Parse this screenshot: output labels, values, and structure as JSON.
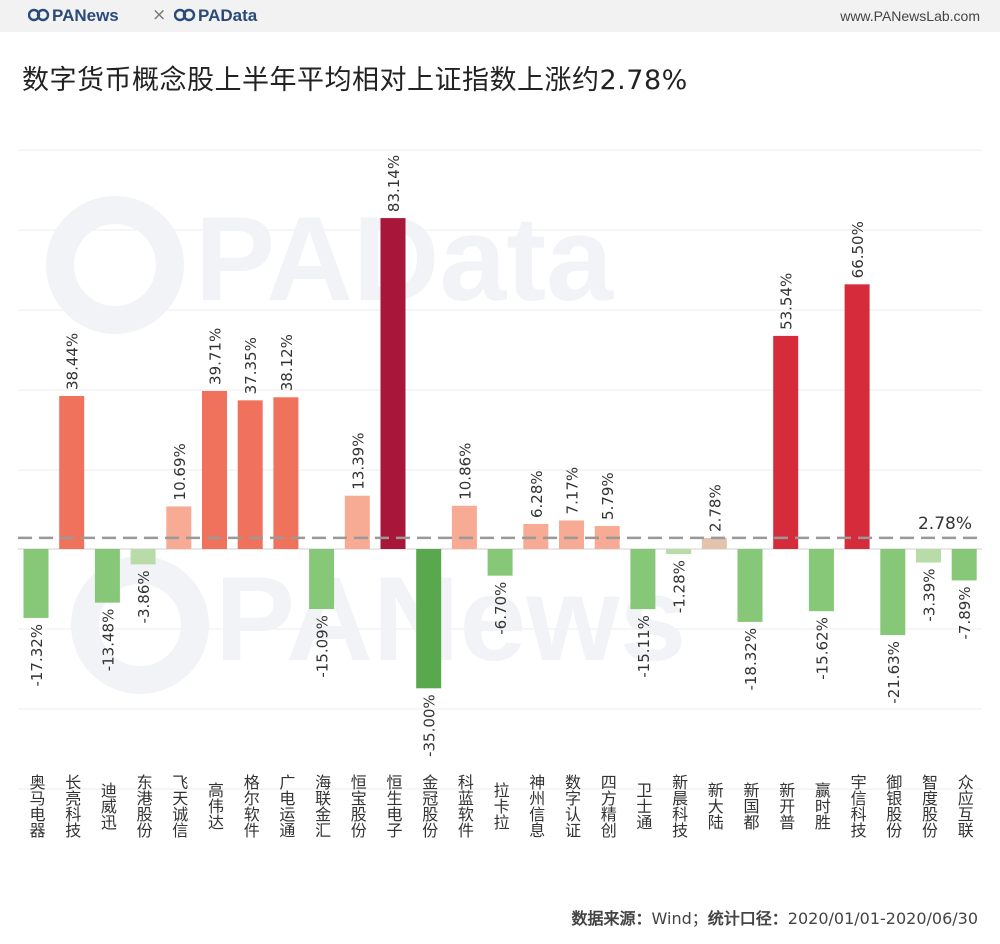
{
  "header": {
    "brand_left": "PANews",
    "separator": "×",
    "brand_right": "PAData",
    "site": "www.PANewsLab.com"
  },
  "title": "数字货币概念股上半年平均相对上证指数上涨约2.78%",
  "footer": {
    "source_label": "数据来源：",
    "source": "Wind；",
    "period_label": "统计口径：",
    "period": "2020/01/01-2020/06/30"
  },
  "watermarks": [
    "PAData",
    "PANews"
  ],
  "colors": {
    "positive_dark": "#a8163a",
    "positive_strong": "#d62b3a",
    "positive_mid": "#e25a48",
    "positive_light": "#f0715c",
    "positive_pale": "#f7ab94",
    "neutral": "#e3c2ae",
    "negative_light": "#b8dba8",
    "negative_mid": "#86c877",
    "negative_dark": "#5aa84e",
    "reference_line": "#999999"
  },
  "chart_data": {
    "type": "bar",
    "categories": [
      "奥马电器",
      "长亮科技",
      "迪威迅",
      "东港股份",
      "飞天诚信",
      "高伟达",
      "格尔软件",
      "广电运通",
      "海联金汇",
      "恒宝股份",
      "恒生电子",
      "金冠股份",
      "科蓝软件",
      "拉卡拉",
      "神州信息",
      "数字认证",
      "四方精创",
      "卫士通",
      "新晨科技",
      "新大陆",
      "新国都",
      "新开普",
      "赢时胜",
      "宇信科技",
      "御银股份",
      "智度股份",
      "众应互联"
    ],
    "values": [
      -17.32,
      38.44,
      -13.48,
      -3.86,
      10.69,
      39.71,
      37.35,
      38.12,
      -15.09,
      13.39,
      83.14,
      -35.0,
      10.86,
      -6.7,
      6.28,
      7.17,
      5.79,
      -15.11,
      -1.28,
      2.78,
      -18.32,
      53.54,
      -15.62,
      66.5,
      -21.63,
      -3.39,
      -7.89
    ],
    "value_labels": [
      "-17.32%",
      "38.44%",
      "-13.48%",
      "-3.86%",
      "10.69%",
      "39.71%",
      "37.35%",
      "38.12%",
      "-15.09%",
      "13.39%",
      "83.14%",
      "-35.00%",
      "10.86%",
      "-6.70%",
      "6.28%",
      "7.17%",
      "5.79%",
      "-15.11%",
      "-1.28%",
      "2.78%",
      "-18.32%",
      "53.54%",
      "-15.62%",
      "66.50%",
      "-21.63%",
      "-3.39%",
      "-7.89%"
    ],
    "reference_line": {
      "value": 2.78,
      "label": "2.78%"
    },
    "ylim": [
      -60,
      110
    ],
    "grid": true,
    "xlabel": "",
    "ylabel": ""
  }
}
